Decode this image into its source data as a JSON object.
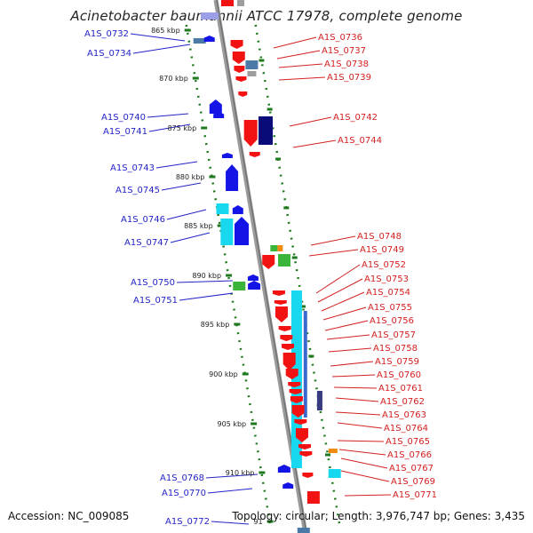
{
  "title": "Acinetobacter baumannii ATCC 17978, complete genome",
  "footer": {
    "accession": "Accession: NC_009085",
    "summary": "Topology: circular; Length: 3,976,747 bp; Genes: 3,435"
  },
  "colors": {
    "forward_label": "#d42020",
    "reverse_label": "#2323c8",
    "backbone": "#9a9a9a",
    "tick": "#1f7a1f"
  },
  "kbp_ticks": [
    {
      "label": "865 kbp"
    },
    {
      "label": "870 kbp"
    },
    {
      "label": "875 kbp"
    },
    {
      "label": "880 kbp"
    },
    {
      "label": "885 kbp"
    },
    {
      "label": "890 kbp"
    },
    {
      "label": "895 kbp"
    },
    {
      "label": "900 kbp"
    },
    {
      "label": "905 kbp"
    },
    {
      "label": "910 kbp"
    },
    {
      "label": "91"
    }
  ],
  "reverse_genes": [
    "A1S_0732",
    "A1S_0734",
    "A1S_0740",
    "A1S_0741",
    "A1S_0743",
    "A1S_0745",
    "A1S_0746",
    "A1S_0747",
    "A1S_0750",
    "A1S_0751",
    "A1S_0768",
    "A1S_0770",
    "A1S_0772"
  ],
  "forward_genes": [
    "A1S_0736",
    "A1S_0737",
    "A1S_0738",
    "A1S_0739",
    "A1S_0742",
    "A1S_0744",
    "A1S_0748",
    "A1S_0749",
    "A1S_0752",
    "A1S_0753",
    "A1S_0754",
    "A1S_0755",
    "A1S_0756",
    "A1S_0757",
    "A1S_0758",
    "A1S_0759",
    "A1S_0760",
    "A1S_0761",
    "A1S_0762",
    "A1S_0763",
    "A1S_0764",
    "A1S_0765",
    "A1S_0766",
    "A1S_0767",
    "A1S_0769",
    "A1S_0771"
  ]
}
